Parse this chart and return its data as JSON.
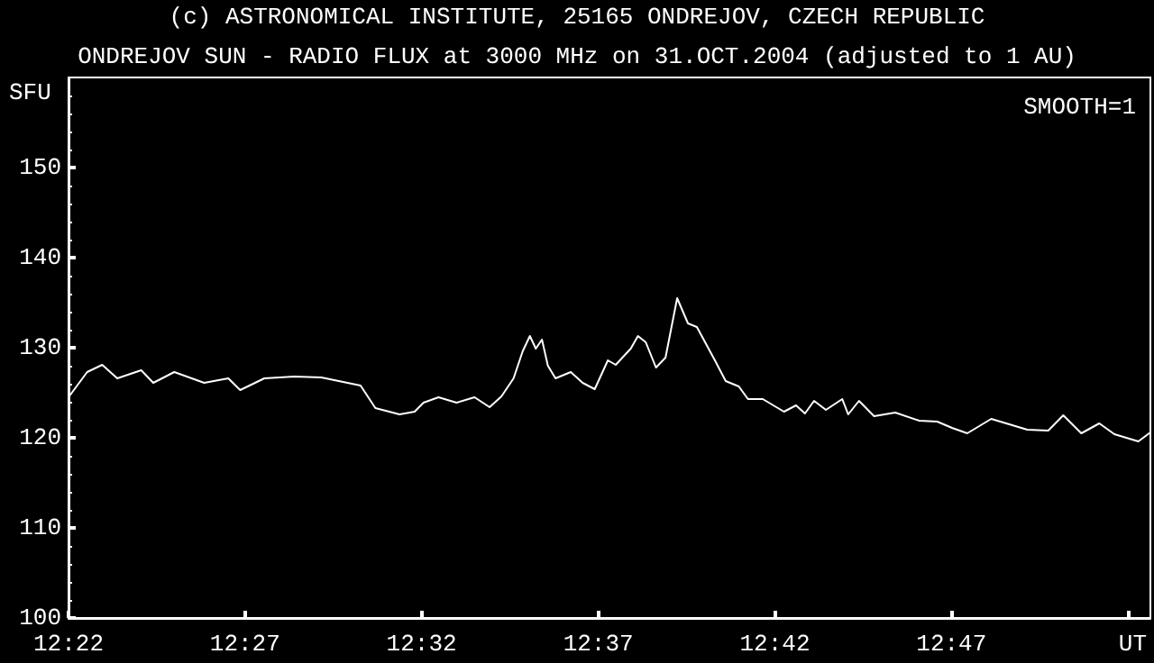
{
  "chart_data": {
    "type": "line",
    "subtitle": "(c) ASTRONOMICAL INSTITUTE, 25165 ONDREJOV, CZECH REPUBLIC",
    "title": "ONDREJOV SUN - RADIO FLUX at 3000 MHz on 31.OCT.2004 (adjusted to 1 AU)",
    "xlabel": "UT",
    "ylabel": "SFU",
    "annotations": [
      "SMOOTH=1"
    ],
    "series": [
      {
        "color": "#ffffff",
        "x": [
          12.367,
          12.3755,
          12.3826,
          12.3897,
          12.401,
          12.4067,
          12.4166,
          12.4307,
          12.4421,
          12.4477,
          12.4591,
          12.4732,
          12.486,
          12.5045,
          12.5115,
          12.5229,
          12.53,
          12.5342,
          12.5413,
          12.5498,
          12.5583,
          12.5654,
          12.571,
          12.5767,
          12.581,
          12.5844,
          12.5872,
          12.5901,
          12.5929,
          12.5965,
          12.6037,
          12.6093,
          12.615,
          12.6212,
          12.6249,
          12.632,
          12.6354,
          12.6391,
          12.6439,
          12.6484,
          12.6539,
          12.659,
          12.6632,
          12.6717,
          12.6768,
          12.683,
          12.6873,
          12.6943,
          12.7043,
          12.71,
          12.7142,
          12.7185,
          12.7241,
          12.7318,
          12.7346,
          12.7397,
          12.7468,
          12.7568,
          12.7681,
          12.7766,
          12.7836,
          12.7908,
          12.8021,
          12.8191,
          12.829,
          12.8361,
          12.8446,
          12.8531,
          12.8602,
          12.8715,
          12.8772
        ],
        "values": [
          124.6,
          127.3,
          128.1,
          126.6,
          127.5,
          126.1,
          127.3,
          126.1,
          126.6,
          125.3,
          126.6,
          126.8,
          126.7,
          125.8,
          123.3,
          122.6,
          122.9,
          123.9,
          124.5,
          123.9,
          124.5,
          123.4,
          124.6,
          126.6,
          129.6,
          131.3,
          129.9,
          130.9,
          128.0,
          126.6,
          127.3,
          126.1,
          125.4,
          128.6,
          128.1,
          129.9,
          131.3,
          130.6,
          127.8,
          128.9,
          135.5,
          132.7,
          132.3,
          128.6,
          126.3,
          125.7,
          124.3,
          124.3,
          122.9,
          123.6,
          122.7,
          124.1,
          123.1,
          124.3,
          122.6,
          124.1,
          122.4,
          122.8,
          121.9,
          121.8,
          121.1,
          120.5,
          122.1,
          120.9,
          120.8,
          122.5,
          120.5,
          121.6,
          120.4,
          119.6,
          120.6
        ]
      }
    ],
    "xlim": [
      12.3667,
      12.8772
    ],
    "xticks": [
      {
        "value": 12.3667,
        "label": "12:22"
      },
      {
        "value": 12.45,
        "label": "12:27"
      },
      {
        "value": 12.5333,
        "label": "12:32"
      },
      {
        "value": 12.6167,
        "label": "12:37"
      },
      {
        "value": 12.7,
        "label": "12:42"
      },
      {
        "value": 12.7833,
        "label": "12:47"
      },
      {
        "value": 12.8667,
        "label": null
      }
    ],
    "ylim": [
      100,
      160
    ],
    "yticks": [
      100,
      110,
      120,
      130,
      140,
      150
    ],
    "grid": false,
    "marker": "none",
    "line_style": "solid"
  }
}
